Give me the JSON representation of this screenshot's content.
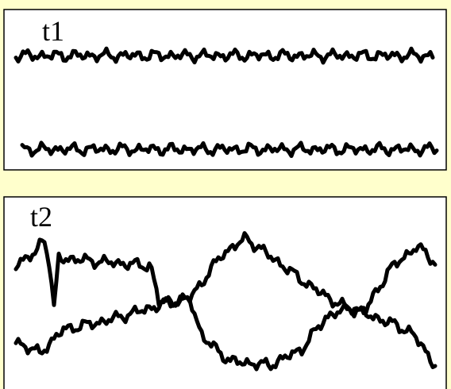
{
  "panels": [
    {
      "label": "t1"
    },
    {
      "label": "t2"
    }
  ]
}
